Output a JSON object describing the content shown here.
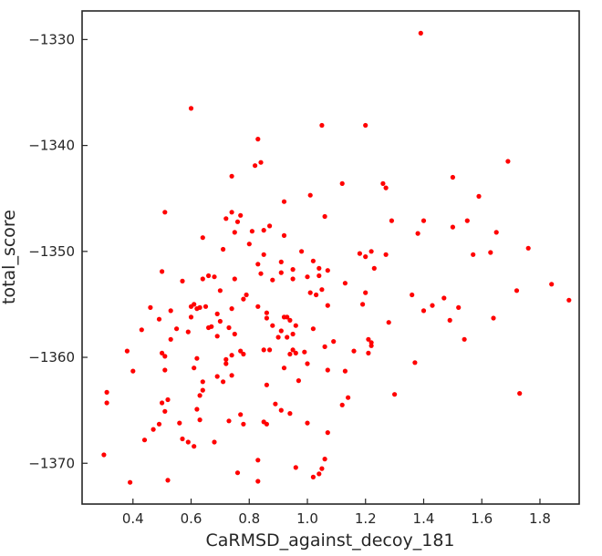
{
  "chart_data": {
    "type": "scatter",
    "title": "",
    "xlabel": "CaRMSD_against_decoy_181",
    "ylabel": "total_score",
    "xlim": [
      0.225,
      1.935
    ],
    "ylim": [
      -1373.85,
      -1327.3
    ],
    "xticks": [
      0.4,
      0.6,
      0.8,
      1.0,
      1.2,
      1.4,
      1.6,
      1.8
    ],
    "xtick_labels": [
      "0.4",
      "0.6",
      "0.8",
      "1.0",
      "1.2",
      "1.4",
      "1.6",
      "1.8"
    ],
    "yticks": [
      -1330,
      -1340,
      -1350,
      -1360,
      -1370
    ],
    "ytick_labels": [
      "−1330",
      "−1340",
      "−1350",
      "−1360",
      "−1370"
    ],
    "grid": false,
    "legend": "none",
    "point_color": "#ff0000",
    "series": [
      {
        "points": [
          [
            0.3,
            -1369.2
          ],
          [
            0.31,
            -1364.3
          ],
          [
            0.31,
            -1363.3
          ],
          [
            0.38,
            -1359.4
          ],
          [
            0.39,
            -1371.8
          ],
          [
            0.4,
            -1361.3
          ],
          [
            0.43,
            -1357.4
          ],
          [
            0.44,
            -1367.8
          ],
          [
            0.46,
            -1355.3
          ],
          [
            0.47,
            -1366.8
          ],
          [
            0.49,
            -1366.3
          ],
          [
            0.49,
            -1356.4
          ],
          [
            0.5,
            -1359.6
          ],
          [
            0.5,
            -1364.3
          ],
          [
            0.5,
            -1351.9
          ],
          [
            0.51,
            -1346.3
          ],
          [
            0.51,
            -1359.9
          ],
          [
            0.51,
            -1365.1
          ],
          [
            0.51,
            -1361.2
          ],
          [
            0.52,
            -1364.0
          ],
          [
            0.52,
            -1371.6
          ],
          [
            0.53,
            -1355.6
          ],
          [
            0.53,
            -1358.3
          ],
          [
            0.55,
            -1357.3
          ],
          [
            0.56,
            -1366.2
          ],
          [
            0.57,
            -1352.8
          ],
          [
            0.57,
            -1367.7
          ],
          [
            0.59,
            -1368.0
          ],
          [
            0.59,
            -1357.6
          ],
          [
            0.6,
            -1336.5
          ],
          [
            0.6,
            -1355.2
          ],
          [
            0.6,
            -1356.2
          ],
          [
            0.61,
            -1361.0
          ],
          [
            0.61,
            -1355.0
          ],
          [
            0.61,
            -1368.4
          ],
          [
            0.62,
            -1360.1
          ],
          [
            0.62,
            -1355.4
          ],
          [
            0.62,
            -1364.9
          ],
          [
            0.63,
            -1365.9
          ],
          [
            0.63,
            -1355.3
          ],
          [
            0.63,
            -1363.6
          ],
          [
            0.64,
            -1362.3
          ],
          [
            0.64,
            -1363.1
          ],
          [
            0.64,
            -1352.6
          ],
          [
            0.64,
            -1348.7
          ],
          [
            0.65,
            -1355.2
          ],
          [
            0.66,
            -1352.3
          ],
          [
            0.66,
            -1357.2
          ],
          [
            0.67,
            -1357.1
          ],
          [
            0.68,
            -1352.4
          ],
          [
            0.68,
            -1368.0
          ],
          [
            0.69,
            -1355.9
          ],
          [
            0.69,
            -1361.8
          ],
          [
            0.69,
            -1358.0
          ],
          [
            0.7,
            -1356.6
          ],
          [
            0.7,
            -1353.7
          ],
          [
            0.71,
            -1349.8
          ],
          [
            0.71,
            -1362.3
          ],
          [
            0.72,
            -1360.6
          ],
          [
            0.72,
            -1360.2
          ],
          [
            0.72,
            -1346.9
          ],
          [
            0.73,
            -1357.2
          ],
          [
            0.73,
            -1366.0
          ],
          [
            0.74,
            -1346.3
          ],
          [
            0.74,
            -1342.9
          ],
          [
            0.74,
            -1361.7
          ],
          [
            0.74,
            -1355.4
          ],
          [
            0.74,
            -1359.8
          ],
          [
            0.75,
            -1352.6
          ],
          [
            0.75,
            -1348.2
          ],
          [
            0.75,
            -1357.8
          ],
          [
            0.76,
            -1370.9
          ],
          [
            0.76,
            -1347.2
          ],
          [
            0.77,
            -1359.4
          ],
          [
            0.77,
            -1365.4
          ],
          [
            0.77,
            -1346.6
          ],
          [
            0.78,
            -1359.7
          ],
          [
            0.78,
            -1366.3
          ],
          [
            0.78,
            -1354.5
          ],
          [
            0.79,
            -1354.1
          ],
          [
            0.8,
            -1349.3
          ],
          [
            0.81,
            -1348.1
          ],
          [
            0.82,
            -1341.9
          ],
          [
            0.83,
            -1355.2
          ],
          [
            0.83,
            -1351.2
          ],
          [
            0.83,
            -1339.4
          ],
          [
            0.83,
            -1371.7
          ],
          [
            0.83,
            -1369.7
          ],
          [
            0.84,
            -1341.6
          ],
          [
            0.84,
            -1352.1
          ],
          [
            0.85,
            -1348.0
          ],
          [
            0.85,
            -1350.3
          ],
          [
            0.85,
            -1366.1
          ],
          [
            0.85,
            -1359.3
          ],
          [
            0.86,
            -1366.3
          ],
          [
            0.86,
            -1356.3
          ],
          [
            0.86,
            -1362.6
          ],
          [
            0.86,
            -1355.8
          ],
          [
            0.87,
            -1359.3
          ],
          [
            0.87,
            -1347.6
          ],
          [
            0.88,
            -1352.7
          ],
          [
            0.88,
            -1357.0
          ],
          [
            0.89,
            -1364.4
          ],
          [
            0.9,
            -1358.1
          ],
          [
            0.91,
            -1351.0
          ],
          [
            0.91,
            -1352.0
          ],
          [
            0.91,
            -1357.5
          ],
          [
            0.91,
            -1365.0
          ],
          [
            0.92,
            -1361.0
          ],
          [
            0.92,
            -1345.3
          ],
          [
            0.92,
            -1356.2
          ],
          [
            0.92,
            -1348.5
          ],
          [
            0.93,
            -1358.1
          ],
          [
            0.93,
            -1356.2
          ],
          [
            0.94,
            -1359.7
          ],
          [
            0.94,
            -1356.5
          ],
          [
            0.94,
            -1365.3
          ],
          [
            0.95,
            -1357.8
          ],
          [
            0.95,
            -1351.7
          ],
          [
            0.95,
            -1359.3
          ],
          [
            0.95,
            -1352.6
          ],
          [
            0.96,
            -1357.0
          ],
          [
            0.96,
            -1359.6
          ],
          [
            0.96,
            -1370.4
          ],
          [
            0.97,
            -1362.2
          ],
          [
            0.98,
            -1350.0
          ],
          [
            0.99,
            -1359.5
          ],
          [
            1.0,
            -1352.4
          ],
          [
            1.0,
            -1360.6
          ],
          [
            1.0,
            -1366.2
          ],
          [
            1.01,
            -1353.9
          ],
          [
            1.01,
            -1344.7
          ],
          [
            1.02,
            -1350.9
          ],
          [
            1.02,
            -1371.3
          ],
          [
            1.02,
            -1357.3
          ],
          [
            1.03,
            -1354.1
          ],
          [
            1.04,
            -1351.6
          ],
          [
            1.04,
            -1352.3
          ],
          [
            1.04,
            -1371.0
          ],
          [
            1.05,
            -1353.6
          ],
          [
            1.05,
            -1370.5
          ],
          [
            1.05,
            -1338.1
          ],
          [
            1.06,
            -1346.7
          ],
          [
            1.06,
            -1359.0
          ],
          [
            1.06,
            -1369.6
          ],
          [
            1.07,
            -1351.8
          ],
          [
            1.07,
            -1355.1
          ],
          [
            1.07,
            -1361.2
          ],
          [
            1.07,
            -1367.1
          ],
          [
            1.09,
            -1358.5
          ],
          [
            1.12,
            -1343.6
          ],
          [
            1.12,
            -1364.5
          ],
          [
            1.13,
            -1353.0
          ],
          [
            1.13,
            -1361.3
          ],
          [
            1.14,
            -1363.8
          ],
          [
            1.16,
            -1359.4
          ],
          [
            1.18,
            -1350.2
          ],
          [
            1.19,
            -1355.0
          ],
          [
            1.2,
            -1338.1
          ],
          [
            1.2,
            -1353.9
          ],
          [
            1.2,
            -1350.5
          ],
          [
            1.21,
            -1358.3
          ],
          [
            1.21,
            -1359.6
          ],
          [
            1.22,
            -1358.6
          ],
          [
            1.22,
            -1358.9
          ],
          [
            1.22,
            -1350.0
          ],
          [
            1.23,
            -1351.6
          ],
          [
            1.26,
            -1343.6
          ],
          [
            1.27,
            -1350.3
          ],
          [
            1.27,
            -1344.0
          ],
          [
            1.28,
            -1356.7
          ],
          [
            1.29,
            -1347.1
          ],
          [
            1.3,
            -1363.5
          ],
          [
            1.36,
            -1354.1
          ],
          [
            1.37,
            -1360.5
          ],
          [
            1.38,
            -1348.3
          ],
          [
            1.39,
            -1329.4
          ],
          [
            1.4,
            -1355.6
          ],
          [
            1.4,
            -1347.1
          ],
          [
            1.43,
            -1355.1
          ],
          [
            1.47,
            -1354.4
          ],
          [
            1.49,
            -1356.5
          ],
          [
            1.5,
            -1347.7
          ],
          [
            1.5,
            -1343.0
          ],
          [
            1.52,
            -1355.3
          ],
          [
            1.54,
            -1358.3
          ],
          [
            1.55,
            -1347.1
          ],
          [
            1.57,
            -1350.3
          ],
          [
            1.59,
            -1344.8
          ],
          [
            1.63,
            -1350.1
          ],
          [
            1.64,
            -1356.3
          ],
          [
            1.65,
            -1348.2
          ],
          [
            1.69,
            -1341.5
          ],
          [
            1.72,
            -1353.7
          ],
          [
            1.73,
            -1363.4
          ],
          [
            1.76,
            -1349.7
          ],
          [
            1.84,
            -1353.1
          ],
          [
            1.9,
            -1354.6
          ]
        ]
      }
    ]
  }
}
